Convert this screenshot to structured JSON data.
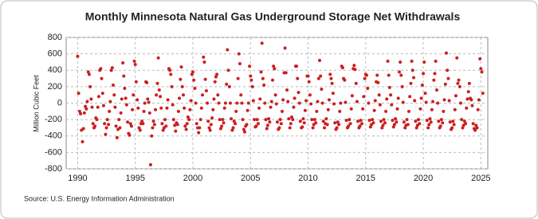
{
  "chart_data": {
    "type": "scatter",
    "title": "Monthly Minnesota Natural Gas Underground Storage Net Withdrawals",
    "y_label": "Million Cubic Feet",
    "source": "Source: U.S. Energy Information Administration",
    "color": "#cc1f1f",
    "grid": true,
    "xlim": [
      1989,
      2025.6
    ],
    "xticks": [
      1990,
      1995,
      2000,
      2005,
      2010,
      2015,
      2020,
      2025
    ],
    "ylim": [
      -800,
      800
    ],
    "yticks": [
      -800,
      -600,
      -400,
      -200,
      0,
      200,
      400,
      600,
      800
    ],
    "x": [
      1990,
      1990.08,
      1990.17,
      1990.25,
      1990.33,
      1990.42,
      1990.5,
      1990.58,
      1990.67,
      1990.75,
      1990.83,
      1990.92,
      1991,
      1991.08,
      1991.17,
      1991.25,
      1991.33,
      1991.42,
      1991.5,
      1991.58,
      1991.67,
      1991.75,
      1991.83,
      1991.92,
      1992,
      1992.08,
      1992.17,
      1992.25,
      1992.33,
      1992.42,
      1992.5,
      1992.58,
      1992.67,
      1992.75,
      1992.83,
      1992.92,
      1993,
      1993.08,
      1993.17,
      1993.25,
      1993.33,
      1993.42,
      1993.5,
      1993.58,
      1993.67,
      1993.75,
      1993.83,
      1993.92,
      1994,
      1994.08,
      1994.17,
      1994.25,
      1994.33,
      1994.42,
      1994.5,
      1994.58,
      1994.67,
      1994.75,
      1994.83,
      1994.92,
      1995,
      1995.08,
      1995.17,
      1995.25,
      1995.33,
      1995.42,
      1995.5,
      1995.58,
      1995.67,
      1995.75,
      1995.83,
      1995.92,
      1996,
      1996.08,
      1996.17,
      1996.25,
      1996.33,
      1996.42,
      1996.5,
      1996.58,
      1996.67,
      1996.75,
      1996.83,
      1996.92,
      1997,
      1997.08,
      1997.17,
      1997.25,
      1997.33,
      1997.42,
      1997.5,
      1997.58,
      1997.67,
      1997.75,
      1997.83,
      1997.92,
      1998,
      1998.08,
      1998.17,
      1998.25,
      1998.33,
      1998.42,
      1998.5,
      1998.58,
      1998.67,
      1998.75,
      1998.83,
      1998.92,
      1999,
      1999.08,
      1999.17,
      1999.25,
      1999.33,
      1999.42,
      1999.5,
      1999.58,
      1999.67,
      1999.75,
      1999.83,
      1999.92,
      2000,
      2000.08,
      2000.17,
      2000.25,
      2000.33,
      2000.42,
      2000.5,
      2000.58,
      2000.67,
      2000.75,
      2000.83,
      2000.92,
      2001,
      2001.08,
      2001.17,
      2001.25,
      2001.33,
      2001.42,
      2001.5,
      2001.58,
      2001.67,
      2001.75,
      2001.83,
      2001.92,
      2002,
      2002.08,
      2002.17,
      2002.25,
      2002.33,
      2002.42,
      2002.5,
      2002.58,
      2002.67,
      2002.75,
      2002.83,
      2002.92,
      2003,
      2003.08,
      2003.17,
      2003.25,
      2003.33,
      2003.42,
      2003.5,
      2003.58,
      2003.67,
      2003.75,
      2003.83,
      2003.92,
      2004,
      2004.08,
      2004.17,
      2004.25,
      2004.33,
      2004.42,
      2004.5,
      2004.58,
      2004.67,
      2004.75,
      2004.83,
      2004.92,
      2005,
      2005.08,
      2005.17,
      2005.25,
      2005.33,
      2005.42,
      2005.5,
      2005.58,
      2005.67,
      2005.75,
      2005.83,
      2005.92,
      2006,
      2006.08,
      2006.17,
      2006.25,
      2006.33,
      2006.42,
      2006.5,
      2006.58,
      2006.67,
      2006.75,
      2006.83,
      2006.92,
      2007,
      2007.08,
      2007.17,
      2007.25,
      2007.33,
      2007.42,
      2007.5,
      2007.58,
      2007.67,
      2007.75,
      2007.83,
      2007.92,
      2008,
      2008.08,
      2008.17,
      2008.25,
      2008.33,
      2008.42,
      2008.5,
      2008.58,
      2008.67,
      2008.75,
      2008.83,
      2008.92,
      2009,
      2009.08,
      2009.17,
      2009.25,
      2009.33,
      2009.42,
      2009.5,
      2009.58,
      2009.67,
      2009.75,
      2009.83,
      2009.92,
      2010,
      2010.08,
      2010.17,
      2010.25,
      2010.33,
      2010.42,
      2010.5,
      2010.58,
      2010.67,
      2010.75,
      2010.83,
      2010.92,
      2011,
      2011.08,
      2011.17,
      2011.25,
      2011.33,
      2011.42,
      2011.5,
      2011.58,
      2011.67,
      2011.75,
      2011.83,
      2011.92,
      2012,
      2012.08,
      2012.17,
      2012.25,
      2012.33,
      2012.42,
      2012.5,
      2012.58,
      2012.67,
      2012.75,
      2012.83,
      2012.92,
      2013,
      2013.08,
      2013.17,
      2013.25,
      2013.33,
      2013.42,
      2013.5,
      2013.58,
      2013.67,
      2013.75,
      2013.83,
      2013.92,
      2014,
      2014.08,
      2014.17,
      2014.25,
      2014.33,
      2014.42,
      2014.5,
      2014.58,
      2014.67,
      2014.75,
      2014.83,
      2014.92,
      2015,
      2015.08,
      2015.17,
      2015.25,
      2015.33,
      2015.42,
      2015.5,
      2015.58,
      2015.67,
      2015.75,
      2015.83,
      2015.92,
      2016,
      2016.08,
      2016.17,
      2016.25,
      2016.33,
      2016.42,
      2016.5,
      2016.58,
      2016.67,
      2016.75,
      2016.83,
      2016.92,
      2017,
      2017.08,
      2017.17,
      2017.25,
      2017.33,
      2017.42,
      2017.5,
      2017.58,
      2017.67,
      2017.75,
      2017.83,
      2017.92,
      2018,
      2018.08,
      2018.17,
      2018.25,
      2018.33,
      2018.42,
      2018.5,
      2018.58,
      2018.67,
      2018.75,
      2018.83,
      2018.92,
      2019,
      2019.08,
      2019.17,
      2019.25,
      2019.33,
      2019.42,
      2019.5,
      2019.58,
      2019.67,
      2019.75,
      2019.83,
      2019.92,
      2020,
      2020.08,
      2020.17,
      2020.25,
      2020.33,
      2020.42,
      2020.5,
      2020.58,
      2020.67,
      2020.75,
      2020.83,
      2020.92,
      2021,
      2021.08,
      2021.17,
      2021.25,
      2021.33,
      2021.42,
      2021.5,
      2021.58,
      2021.67,
      2021.75,
      2021.83,
      2021.92,
      2022,
      2022.08,
      2022.17,
      2022.25,
      2022.33,
      2022.42,
      2022.5,
      2022.58,
      2022.67,
      2022.75,
      2022.83,
      2022.92,
      2023,
      2023.08,
      2023.17,
      2023.25,
      2023.33,
      2023.42,
      2023.5,
      2023.58,
      2023.67,
      2023.75,
      2023.83,
      2023.92,
      2024,
      2024.08,
      2024.17,
      2024.25,
      2024.33,
      2024.42,
      2024.5,
      2024.58,
      2024.67,
      2024.75,
      2024.83,
      2024.92,
      2025,
      2025.08,
      2025.17
    ],
    "values": [
      570,
      120,
      -100,
      -130,
      -330,
      -470,
      -310,
      -120,
      -40,
      -70,
      20,
      380,
      350,
      200,
      50,
      -50,
      -250,
      -300,
      -280,
      -180,
      -200,
      -50,
      80,
      400,
      420,
      300,
      120,
      -30,
      -250,
      -380,
      -300,
      -200,
      -260,
      -100,
      20,
      400,
      430,
      220,
      100,
      -50,
      -280,
      -420,
      -320,
      -200,
      -300,
      -120,
      50,
      490,
      330,
      180,
      60,
      -20,
      -230,
      -370,
      -390,
      -250,
      -280,
      -80,
      100,
      510,
      470,
      260,
      40,
      -60,
      -300,
      -330,
      -250,
      -220,
      -250,
      -100,
      0,
      260,
      250,
      50,
      10,
      -120,
      -750,
      -400,
      -300,
      -220,
      -260,
      -80,
      100,
      240,
      550,
      160,
      80,
      -60,
      -250,
      -330,
      -300,
      -200,
      -280,
      -60,
      40,
      420,
      400,
      350,
      200,
      -20,
      -200,
      -270,
      -340,
      -240,
      -260,
      -100,
      60,
      290,
      440,
      200,
      100,
      -60,
      -280,
      -320,
      -250,
      -170,
      -200,
      -80,
      30,
      350,
      380,
      280,
      180,
      0,
      -250,
      -300,
      -360,
      -300,
      -200,
      -60,
      100,
      560,
      500,
      290,
      150,
      0,
      -220,
      -300,
      -330,
      -260,
      -180,
      -80,
      50,
      260,
      320,
      350,
      100,
      0,
      -200,
      -310,
      -280,
      -200,
      -240,
      -60,
      0,
      230,
      650,
      400,
      200,
      0,
      -190,
      -330,
      -300,
      -220,
      -250,
      -100,
      0,
      300,
      600,
      480,
      100,
      0,
      -200,
      -320,
      -350,
      -280,
      -260,
      -90,
      0,
      450,
      330,
      280,
      200,
      30,
      -200,
      -290,
      -280,
      -200,
      -250,
      -60,
      50,
      380,
      730,
      300,
      220,
      0,
      -200,
      -310,
      -270,
      -190,
      -230,
      -50,
      20,
      280,
      450,
      420,
      100,
      -10,
      -230,
      -320,
      -300,
      -200,
      -250,
      -100,
      40,
      370,
      670,
      370,
      160,
      20,
      -190,
      -300,
      -250,
      -170,
      -200,
      -50,
      60,
      450,
      450,
      300,
      130,
      0,
      -220,
      -300,
      -290,
      -190,
      -240,
      -90,
      30,
      330,
      330,
      260,
      100,
      -10,
      -200,
      -300,
      -260,
      -200,
      -240,
      -100,
      20,
      300,
      520,
      330,
      170,
      0,
      -220,
      -300,
      -250,
      -190,
      -260,
      -80,
      40,
      350,
      300,
      240,
      120,
      -10,
      -240,
      -320,
      -300,
      -230,
      -260,
      -100,
      0,
      450,
      430,
      300,
      280,
      10,
      -210,
      -300,
      -280,
      -200,
      -250,
      -70,
      90,
      420,
      460,
      410,
      240,
      20,
      -220,
      -300,
      -280,
      -210,
      -250,
      -70,
      80,
      300,
      350,
      340,
      180,
      0,
      -210,
      -290,
      -260,
      -200,
      -240,
      -90,
      30,
      260,
      340,
      250,
      100,
      -20,
      -220,
      -300,
      -270,
      -200,
      -240,
      -100,
      50,
      510,
      340,
      190,
      100,
      -20,
      -210,
      -290,
      -260,
      -190,
      -230,
      -70,
      60,
      380,
      500,
      340,
      200,
      10,
      -230,
      -300,
      -270,
      -200,
      -260,
      -100,
      80,
      240,
      510,
      400,
      310,
      30,
      -220,
      -300,
      -270,
      -200,
      -250,
      -70,
      60,
      220,
      360,
      500,
      120,
      10,
      -210,
      -300,
      -260,
      -190,
      -230,
      -80,
      20,
      280,
      360,
      510,
      160,
      0,
      -220,
      -300,
      -280,
      -200,
      -240,
      -100,
      40,
      230,
      610,
      400,
      300,
      30,
      -230,
      -320,
      -300,
      -220,
      -260,
      -80,
      90,
      550,
      240,
      280,
      200,
      0,
      -200,
      -300,
      -270,
      -220,
      -250,
      -60,
      50,
      140,
      240,
      60,
      40,
      -30,
      -250,
      -310,
      -330,
      -270,
      -300,
      -80,
      40,
      540,
      420,
      380,
      120
    ]
  }
}
